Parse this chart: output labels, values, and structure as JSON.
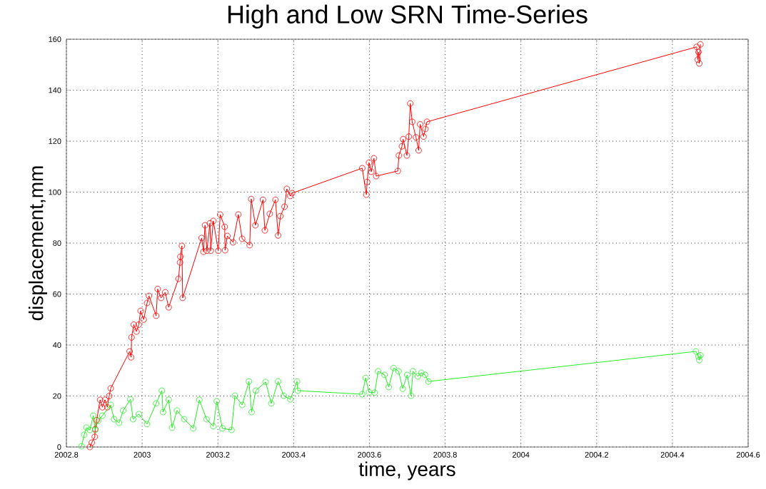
{
  "chart_data": {
    "type": "line",
    "title": "High and Low SRN Time-Series",
    "xlabel": "time, years",
    "ylabel": "displacement,mm",
    "xlim": [
      2002.8,
      2004.6
    ],
    "xticks": [
      2002.8,
      2003,
      2003.2,
      2003.4,
      2003.6,
      2003.8,
      2004,
      2004.2,
      2004.4,
      2004.6
    ],
    "ylim": [
      0,
      160
    ],
    "yticks": [
      0,
      20,
      40,
      60,
      80,
      100,
      120,
      140,
      160
    ],
    "grid": true,
    "marker": "circle",
    "line_style": "solid",
    "series": [
      {
        "color": "#ff0000",
        "x": [
          2002.862,
          2002.867,
          2002.875,
          2002.876,
          2002.88,
          2002.889,
          2002.895,
          2002.902,
          2002.908,
          2002.913,
          2002.917,
          2002.967,
          2002.971,
          2002.972,
          2002.978,
          2002.985,
          2002.991,
          2002.996,
          2003.004,
          2003.013,
          2003.018,
          2003.037,
          2003.041,
          2003.05,
          2003.061,
          2003.07,
          2003.096,
          2003.1,
          2003.101,
          2003.105,
          2003.107,
          2003.157,
          2003.162,
          2003.166,
          2003.171,
          2003.179,
          2003.181,
          2003.188,
          2003.201,
          2003.206,
          2003.218,
          2003.219,
          2003.225,
          2003.24,
          2003.254,
          2003.264,
          2003.284,
          2003.288,
          2003.299,
          2003.319,
          2003.324,
          2003.337,
          2003.352,
          2003.359,
          2003.365,
          2003.376,
          2003.382,
          2003.391,
          2003.396,
          2003.581,
          2003.592,
          2003.594,
          2003.599,
          2003.605,
          2003.612,
          2003.618,
          2003.675,
          2003.678,
          2003.686,
          2003.689,
          2003.699,
          2003.704,
          2003.708,
          2003.713,
          2003.723,
          2003.73,
          2003.734,
          2003.743,
          2003.748,
          2003.752,
          2004.464,
          2004.467,
          2004.469,
          2004.471,
          2004.474
        ],
        "values": [
          0,
          1.7,
          4,
          7,
          10.5,
          18.5,
          15.6,
          18.5,
          15.6,
          20,
          23,
          37.5,
          35.2,
          43,
          48,
          45.3,
          48,
          53.4,
          50,
          56.5,
          59.3,
          51.5,
          62,
          58.5,
          60.7,
          54.8,
          66,
          72.4,
          74.7,
          78.9,
          58.5,
          82,
          76.6,
          87,
          77,
          87.8,
          77,
          88.7,
          77,
          91.2,
          86.4,
          77.2,
          82.8,
          80.3,
          91.2,
          81.7,
          79.2,
          97.3,
          87,
          97,
          85,
          91.5,
          97,
          83,
          90.6,
          94.3,
          101.3,
          98.5,
          99.6,
          109.4,
          99,
          104,
          111.6,
          108,
          113.3,
          106.3,
          108.3,
          114.4,
          118,
          120.8,
          114.4,
          121.8,
          134.8,
          127.6,
          121.5,
          116.4,
          126.6,
          121.8,
          124.8,
          127.6,
          157,
          152,
          155,
          150.5,
          158
        ]
      },
      {
        "color": "#22ee22",
        "x": [
          2002.84,
          2002.847,
          2002.853,
          2002.862,
          2002.871,
          2002.876,
          2002.884,
          2002.895,
          2002.917,
          2002.926,
          2002.939,
          2002.95,
          2002.969,
          2002.976,
          2002.991,
          2003.013,
          2003.037,
          2003.052,
          2003.055,
          2003.07,
          2003.079,
          2003.092,
          2003.111,
          2003.135,
          2003.151,
          2003.17,
          2003.188,
          2003.197,
          2003.212,
          2003.236,
          2003.245,
          2003.264,
          2003.282,
          2003.289,
          2003.3,
          2003.326,
          2003.341,
          2003.359,
          2003.374,
          2003.391,
          2003.409,
          2003.411,
          2003.581,
          2003.59,
          2003.599,
          2003.614,
          2003.623,
          2003.64,
          2003.651,
          2003.664,
          2003.677,
          2003.688,
          2003.7,
          2003.71,
          2003.715,
          2003.728,
          2003.737,
          2003.747,
          2003.756,
          2004.462,
          2004.469,
          2004.471,
          2004.474
        ],
        "values": [
          0.3,
          4.8,
          7.6,
          6.7,
          12.3,
          6.7,
          10.3,
          12.3,
          16.5,
          10.9,
          9.5,
          14.3,
          18.7,
          10.9,
          12.9,
          9,
          17.1,
          22.1,
          13.7,
          18.5,
          7.6,
          14.3,
          10.9,
          7.3,
          18.5,
          10.9,
          8.1,
          17.9,
          7.3,
          6.7,
          20.1,
          16.5,
          25.7,
          13.7,
          22.1,
          25.5,
          17.1,
          25.7,
          20.1,
          18.7,
          25.7,
          22.1,
          20.7,
          27.1,
          21.5,
          21.3,
          29.7,
          28.3,
          23.5,
          31,
          29.7,
          22.9,
          28.3,
          20.1,
          29.7,
          27.7,
          29.1,
          28.3,
          25.7,
          37.5,
          35.5,
          34.1,
          36
        ]
      }
    ]
  }
}
